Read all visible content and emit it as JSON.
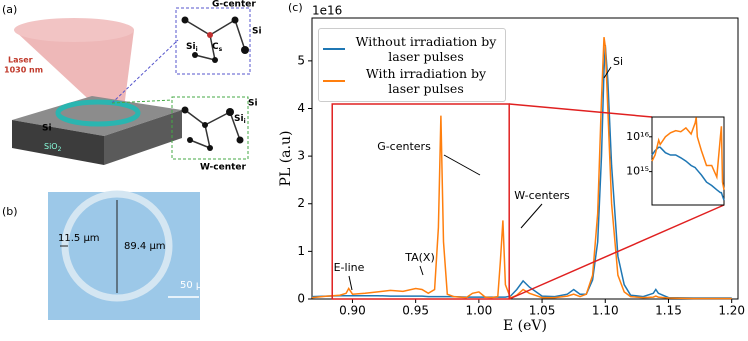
{
  "figure": {
    "panel_a": {
      "label": "(a)",
      "g_center": "G-center",
      "g_si": "Si",
      "cs": {
        "base": "C",
        "sub": "s"
      },
      "g_sii": {
        "base": "Si",
        "sub": "i"
      },
      "laser_1": "Laser",
      "laser_2": "1030 nm",
      "slab_si": "Si",
      "sio2": {
        "base": "SiO",
        "sub": "2"
      },
      "w_si": "Si",
      "w_sii": {
        "base": "Si",
        "sub": "i"
      },
      "w_center": "W-center"
    },
    "panel_b": {
      "label": "(b)",
      "width": "11.5 µm",
      "diameter": "89.4 µm",
      "scale": "50 µm"
    }
  },
  "chart_data": [
    {
      "type": "line",
      "panel_label": "(c)",
      "x_label": "E (eV)",
      "y_label": "PL (a.u)",
      "y_offset_label": "1e16",
      "annotations": [
        "Si",
        "G-centers",
        "W-centers",
        "E-line",
        "TA(X)"
      ],
      "xlim": [
        0.868,
        1.205
      ],
      "ylim": [
        0,
        5.9
      ],
      "xticks": [
        {
          "value": 0.9,
          "label": "0.90"
        },
        {
          "value": 0.95,
          "label": "0.95"
        },
        {
          "value": 1.0,
          "label": "1.00"
        },
        {
          "value": 1.05,
          "label": "1.05"
        },
        {
          "value": 1.1,
          "label": "1.10"
        },
        {
          "value": 1.15,
          "label": "1.15"
        },
        {
          "value": 1.2,
          "label": "1.20"
        }
      ],
      "yticks": [
        0,
        1,
        2,
        3,
        4,
        5
      ],
      "x": [
        0.868,
        0.88,
        0.89,
        0.895,
        0.897,
        0.9,
        0.91,
        0.92,
        0.93,
        0.94,
        0.95,
        0.955,
        0.96,
        0.965,
        0.968,
        0.97,
        0.972,
        0.975,
        0.98,
        0.99,
        0.995,
        1.0,
        1.005,
        1.01,
        1.015,
        1.017,
        1.019,
        1.021,
        1.025,
        1.03,
        1.035,
        1.04,
        1.05,
        1.06,
        1.07,
        1.075,
        1.08,
        1.085,
        1.09,
        1.094,
        1.097,
        1.099,
        1.1,
        1.102,
        1.105,
        1.11,
        1.115,
        1.12,
        1.13,
        1.138,
        1.14,
        1.142,
        1.15,
        1.17,
        1.2
      ],
      "series": [
        {
          "name": "Without irradiation by laser pulses",
          "color": "#1f77b4",
          "values": [
            0.05,
            0.06,
            0.07,
            0.07,
            0.07,
            0.07,
            0.07,
            0.07,
            0.06,
            0.06,
            0.06,
            0.06,
            0.05,
            0.05,
            0.05,
            0.05,
            0.05,
            0.05,
            0.05,
            0.04,
            0.04,
            0.04,
            0.04,
            0.04,
            0.04,
            0.04,
            0.04,
            0.04,
            0.06,
            0.2,
            0.38,
            0.25,
            0.06,
            0.05,
            0.1,
            0.2,
            0.1,
            0.1,
            0.4,
            1.2,
            3.0,
            4.8,
            5.33,
            4.6,
            2.8,
            0.9,
            0.3,
            0.08,
            0.05,
            0.12,
            0.2,
            0.12,
            0.03,
            0.02,
            0.02
          ]
        },
        {
          "name": "With irradiation by laser pulses",
          "color": "#ff7f0e",
          "values": [
            0.03,
            0.06,
            0.08,
            0.12,
            0.22,
            0.1,
            0.12,
            0.15,
            0.18,
            0.16,
            0.22,
            0.2,
            0.12,
            0.2,
            1.5,
            3.85,
            1.2,
            0.1,
            0.05,
            0.03,
            0.12,
            0.15,
            0.04,
            0.03,
            0.05,
            0.8,
            1.65,
            0.3,
            0.02,
            0.08,
            0.2,
            0.12,
            0.03,
            0.03,
            0.06,
            0.1,
            0.05,
            0.1,
            0.5,
            1.8,
            4.2,
            5.5,
            5.3,
            4.0,
            2.0,
            0.5,
            0.15,
            0.05,
            0.03,
            0.04,
            0.06,
            0.04,
            0.02,
            0.01,
            0.01
          ]
        }
      ]
    },
    {
      "type": "line",
      "log_y": true,
      "xlim": [
        0.884,
        1.024
      ],
      "ylim": [
        110000000000000,
        37000000000000000
      ],
      "yticks": [
        {
          "value": 10000000000000000,
          "label": "10¹⁶"
        },
        {
          "value": 1000000000000000,
          "label": "10¹⁵"
        }
      ],
      "x": [
        0.884,
        0.89,
        0.897,
        0.9,
        0.91,
        0.92,
        0.93,
        0.94,
        0.95,
        0.96,
        0.968,
        0.97,
        0.972,
        0.98,
        0.99,
        1.0,
        1.01,
        1.017,
        1.019,
        1.021,
        1.024
      ],
      "series": [
        {
          "color": "#1f77b4",
          "values": [
            3000000000000000.0,
            4000000000000000.0,
            5000000000000000.0,
            5000000000000000.0,
            3500000000000000.0,
            3000000000000000.0,
            3000000000000000.0,
            2500000000000000.0,
            2000000000000000.0,
            1500000000000000.0,
            1300000000000000.0,
            1200000000000000.0,
            1100000000000000.0,
            800000000000000.0,
            500000000000000.0,
            400000000000000.0,
            300000000000000.0,
            250000000000000.0,
            250000000000000.0,
            200000000000000.0,
            150000000000000.0
          ]
        },
        {
          "color": "#ff7f0e",
          "values": [
            2000000000000000.0,
            3000000000000000.0,
            8000000000000000.0,
            6000000000000000.0,
            1e+16,
            1.3e+16,
            1.5e+16,
            1.4e+16,
            1.8e+16,
            1.2e+16,
            2.5e+16,
            3.6e+16,
            1e+16,
            4000000000000000.0,
            1500000000000000.0,
            1500000000000000.0,
            700000000000000.0,
            1e+16,
            2e+16,
            500000000000000.0,
            300000000000000.0
          ]
        }
      ]
    }
  ]
}
